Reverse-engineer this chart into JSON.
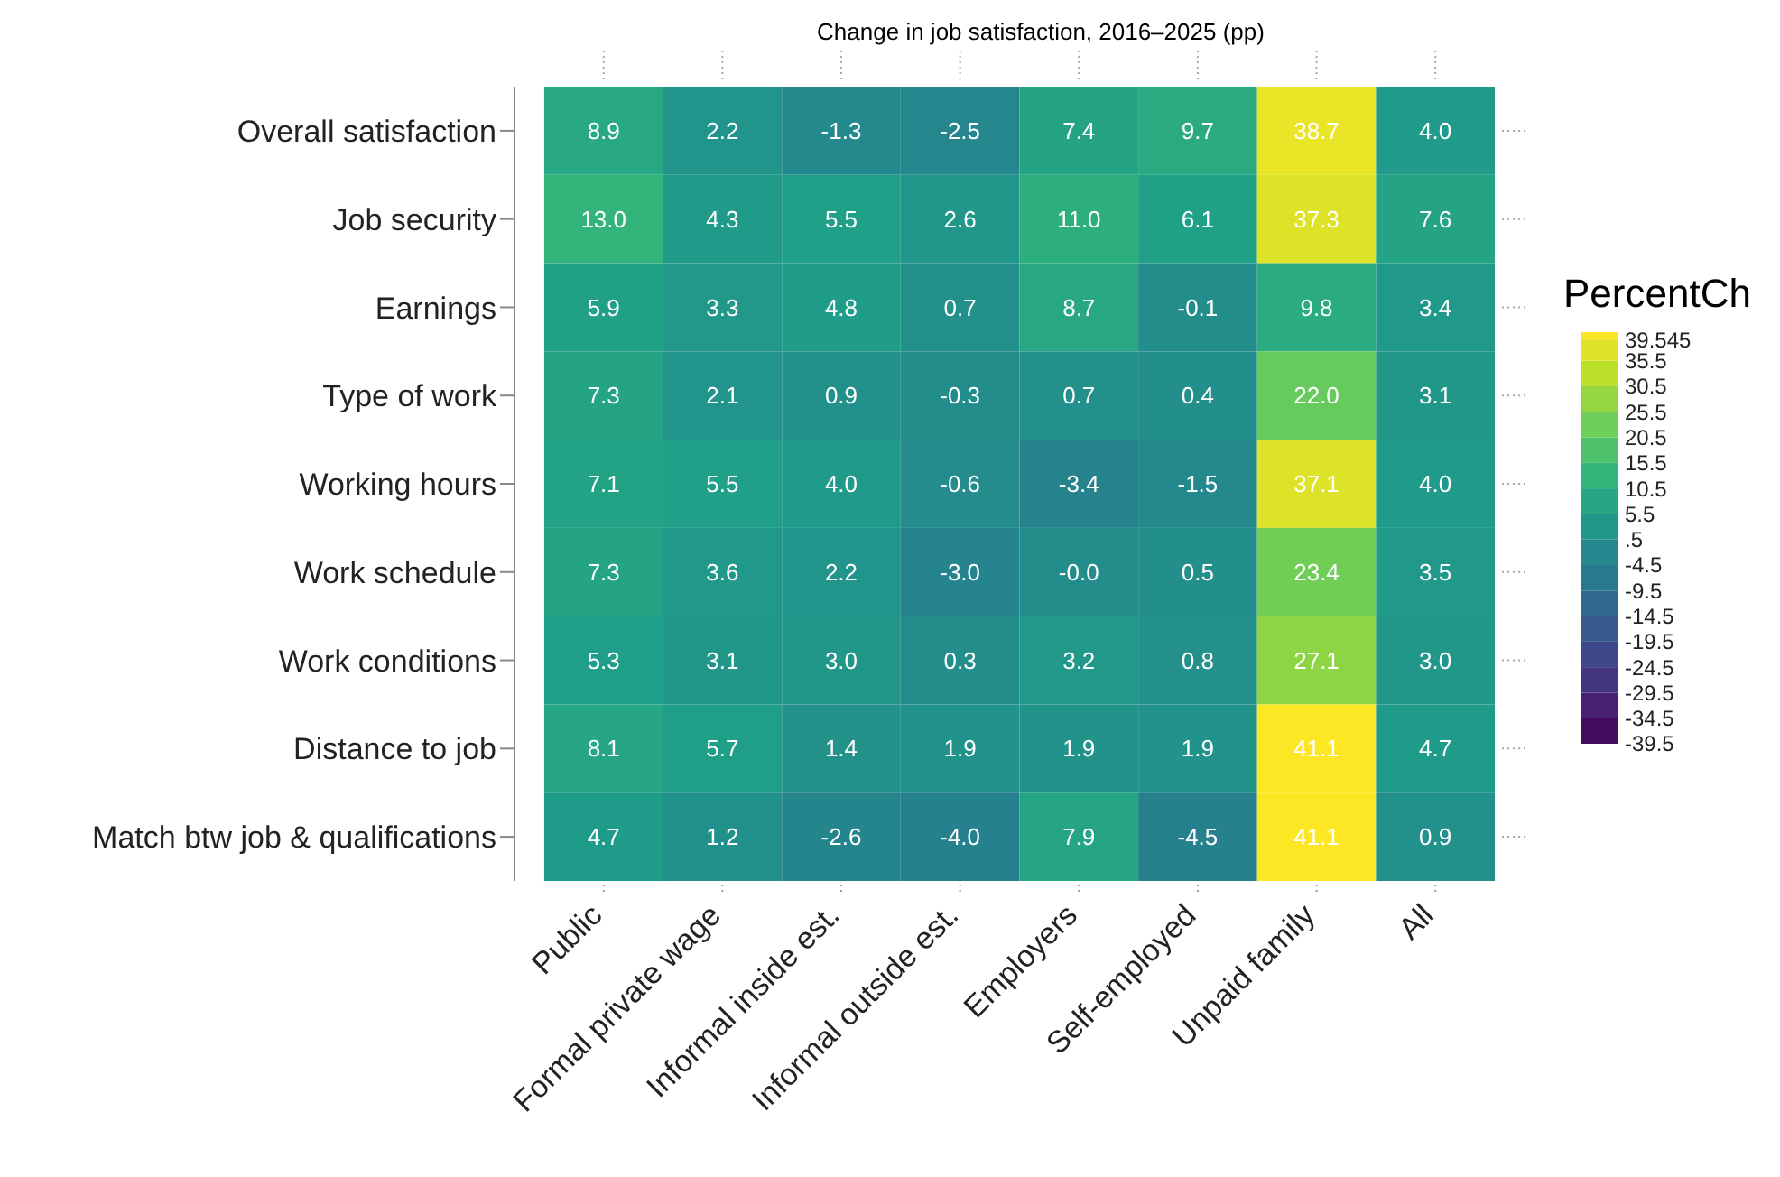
{
  "chart_data": {
    "type": "heatmap",
    "title": "Change in job satisfaction, 2016–2025 (pp)",
    "legend_title": "PercentCh",
    "categories": [
      "Public",
      "Formal private wage",
      "Informal inside est.",
      "Informal outside est.",
      "Employers",
      "Self-employed",
      "Unpaid family",
      "All"
    ],
    "y_categories": [
      "Overall satisfaction",
      "Job security",
      "Earnings",
      "Type of work",
      "Working hours",
      "Work schedule",
      "Work conditions",
      "Distance to job",
      "Match btw job & qualifications"
    ],
    "cells": [
      [
        8.9,
        2.2,
        -1.3,
        -2.5,
        7.4,
        9.7,
        38.7,
        4.0
      ],
      [
        13.0,
        4.3,
        5.5,
        2.6,
        11.0,
        6.1,
        37.3,
        7.6
      ],
      [
        5.9,
        3.3,
        4.8,
        0.7,
        8.7,
        -0.1,
        9.8,
        3.4
      ],
      [
        7.3,
        2.1,
        0.9,
        -0.3,
        0.7,
        0.4,
        22.0,
        3.1
      ],
      [
        7.1,
        5.5,
        4.0,
        -0.6,
        -3.4,
        -1.5,
        37.1,
        4.0
      ],
      [
        7.3,
        3.6,
        2.2,
        -3.0,
        -0.0,
        0.5,
        23.4,
        3.5
      ],
      [
        5.3,
        3.1,
        3.0,
        0.3,
        3.2,
        0.8,
        27.1,
        3.0
      ],
      [
        8.1,
        5.7,
        1.4,
        1.9,
        1.9,
        1.9,
        41.1,
        4.7
      ],
      [
        4.7,
        1.2,
        -2.6,
        -4.0,
        7.9,
        -4.5,
        41.1,
        0.9
      ]
    ],
    "cell_labels": [
      [
        "8.9",
        "2.2",
        "-1.3",
        "-2.5",
        "7.4",
        "9.7",
        "38.7",
        "4.0"
      ],
      [
        "13.0",
        "4.3",
        "5.5",
        "2.6",
        "11.0",
        "6.1",
        "37.3",
        "7.6"
      ],
      [
        "5.9",
        "3.3",
        "4.8",
        "0.7",
        "8.7",
        "-0.1",
        "9.8",
        "3.4"
      ],
      [
        "7.3",
        "2.1",
        "0.9",
        "-0.3",
        "0.7",
        "0.4",
        "22.0",
        "3.1"
      ],
      [
        "7.1",
        "5.5",
        "4.0",
        "-0.6",
        "-3.4",
        "-1.5",
        "37.1",
        "4.0"
      ],
      [
        "7.3",
        "3.6",
        "2.2",
        "-3.0",
        "-0.0",
        "0.5",
        "23.4",
        "3.5"
      ],
      [
        "5.3",
        "3.1",
        "3.0",
        "0.3",
        "3.2",
        "0.8",
        "27.1",
        "3.0"
      ],
      [
        "8.1",
        "5.7",
        "1.4",
        "1.9",
        "1.9",
        "1.9",
        "41.1",
        "4.7"
      ],
      [
        "4.7",
        "1.2",
        "-2.6",
        "-4.0",
        "7.9",
        "-4.5",
        "41.1",
        "0.9"
      ]
    ],
    "clim": [
      -39.5,
      41.1
    ],
    "cticks": [
      -39.5,
      -34.5,
      -29.5,
      -24.5,
      -19.5,
      -14.5,
      -9.5,
      -4.5,
      {
        "value": 0.5,
        "label": ".5"
      },
      5.5,
      10.5,
      15.5,
      20.5,
      25.5,
      30.5,
      35.5,
      39.545
    ],
    "data_labels": true
  }
}
